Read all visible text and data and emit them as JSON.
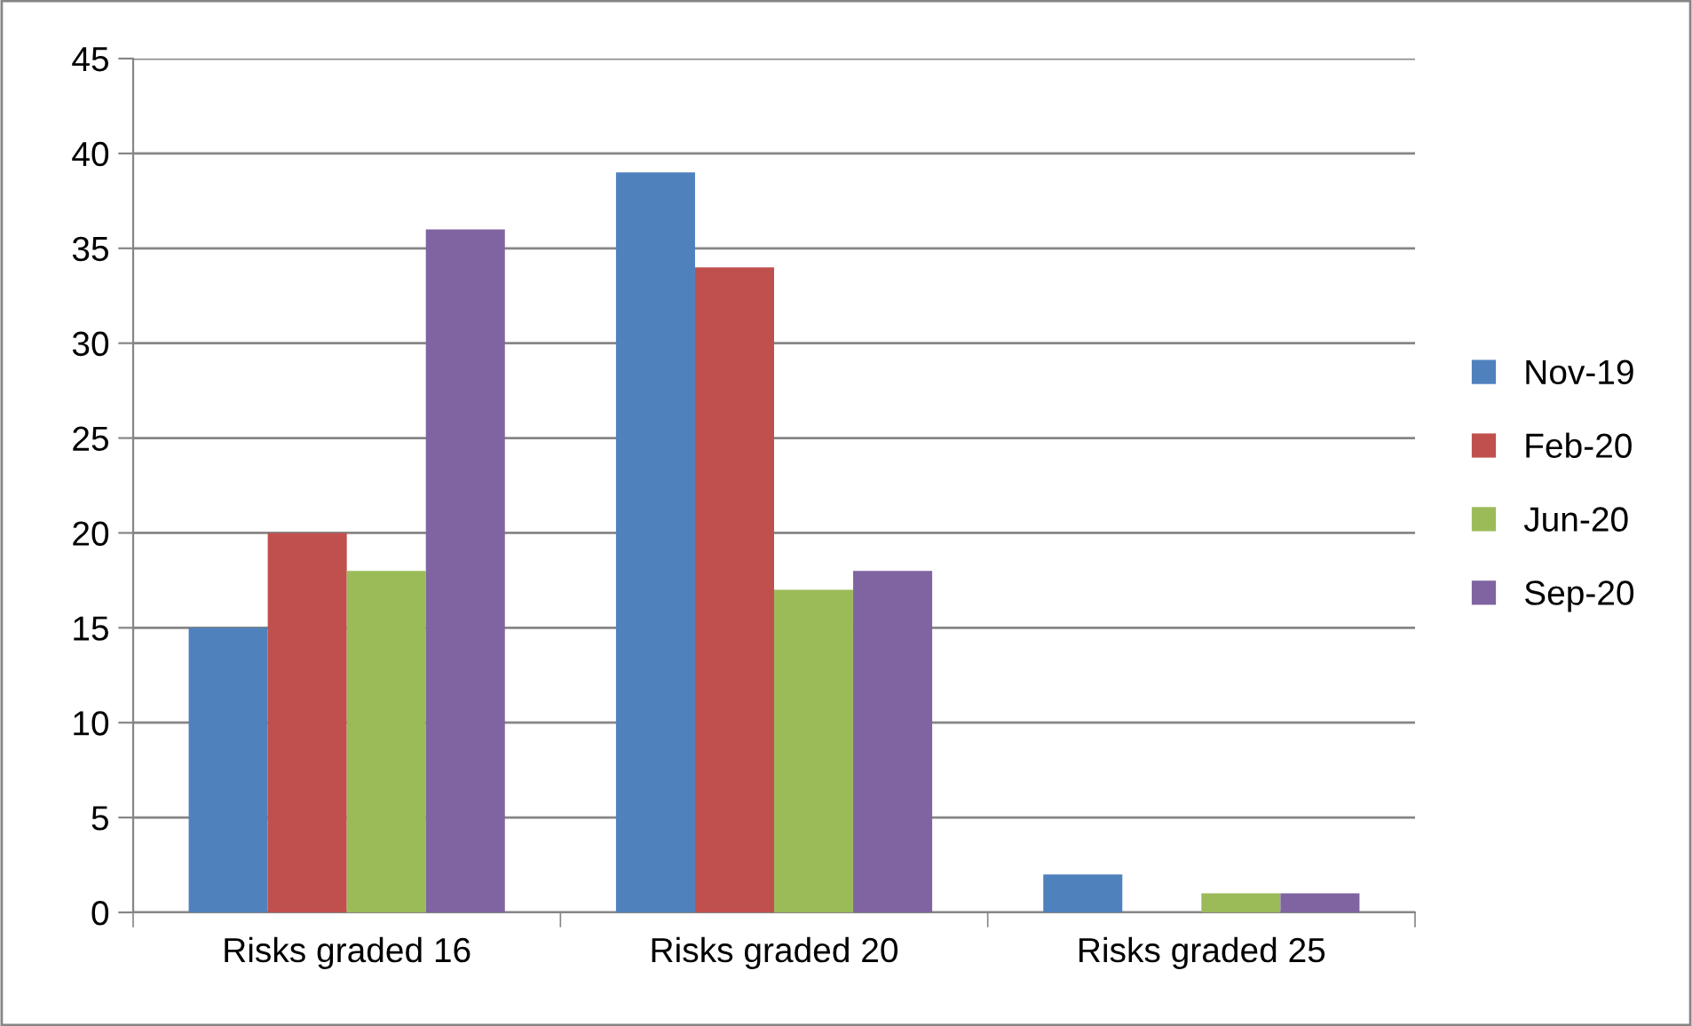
{
  "chart_data": {
    "type": "bar",
    "categories": [
      "Risks graded 16",
      "Risks graded 20",
      "Risks graded 25"
    ],
    "series": [
      {
        "name": "Nov-19",
        "color": "#4f81bd",
        "values": [
          15,
          39,
          2
        ]
      },
      {
        "name": "Feb-20",
        "color": "#c0504d",
        "values": [
          20,
          34,
          0
        ]
      },
      {
        "name": "Jun-20",
        "color": "#9bbb59",
        "values": [
          18,
          17,
          1
        ]
      },
      {
        "name": "Sep-20",
        "color": "#8064a2",
        "values": [
          36,
          18,
          1
        ]
      }
    ],
    "ylim": [
      0,
      45
    ],
    "yticks": [
      0,
      5,
      10,
      15,
      20,
      25,
      30,
      35,
      40,
      45
    ],
    "grid": "y",
    "legend": "right"
  }
}
